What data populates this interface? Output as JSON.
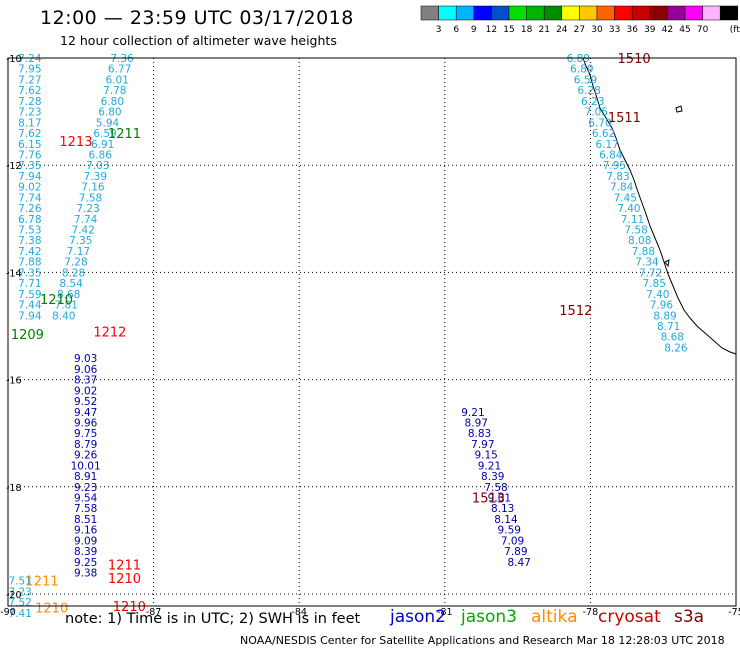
{
  "header": {
    "title": "12:00 — 23:59 UTC 03/17/2018",
    "subtitle": "12 hour collection of altimeter wave heights"
  },
  "colorbar": {
    "unit": "(ft)",
    "colors": [
      "#808080",
      "#00ffff",
      "#00b4ff",
      "#0000ff",
      "#0050c8",
      "#00e000",
      "#00b400",
      "#008c00",
      "#ffff00",
      "#ffc800",
      "#ff6400",
      "#ff0000",
      "#c80000",
      "#8c0000",
      "#960096",
      "#ff00ff",
      "#ffb4ff",
      "#000000"
    ],
    "labels": [
      "3",
      "6",
      "9",
      "12",
      "15",
      "18",
      "21",
      "24",
      "27",
      "30",
      "33",
      "36",
      "39",
      "42",
      "45",
      "70"
    ]
  },
  "axes": {
    "x_labels": [
      "-90",
      "-87",
      "-84",
      "-81",
      "-78",
      "-75"
    ],
    "y_labels": [
      "-10",
      "-12",
      "-14",
      "-16",
      "-18",
      "-20"
    ]
  },
  "passes": [
    {
      "label": "1510",
      "color": "#800000",
      "lon": -77.1,
      "lat": -10.0
    },
    {
      "label": "1511",
      "color": "#800000",
      "lon": -77.3,
      "lat": -11.1
    },
    {
      "label": "1512",
      "color": "#800000",
      "lon": -78.3,
      "lat": -14.7
    },
    {
      "label": "1513",
      "color": "#800000",
      "lon": -80.1,
      "lat": -18.2
    },
    {
      "label": "1211",
      "color": "#008000",
      "lon": -87.6,
      "lat": -11.4
    },
    {
      "label": "1213",
      "color": "#ff0000",
      "lon": -88.6,
      "lat": -11.55
    },
    {
      "label": "1210",
      "color": "#008000",
      "lon": -89.0,
      "lat": -14.5
    },
    {
      "label": "1212",
      "color": "#ff0000",
      "lon": -87.9,
      "lat": -15.1
    },
    {
      "label": "1209",
      "color": "#008000",
      "lon": -89.6,
      "lat": -15.15
    },
    {
      "label": "1211",
      "color": "#ff0000",
      "lon": -87.6,
      "lat": -19.45
    },
    {
      "label": "1210",
      "color": "#ff0000",
      "lon": -87.6,
      "lat": -19.7
    },
    {
      "label": "1211",
      "color": "#ff8c00",
      "lon": -89.3,
      "lat": -19.75
    },
    {
      "label": "1210",
      "color": "#ff8c00",
      "lon": -89.1,
      "lat": -20.25
    },
    {
      "label": "1210",
      "color": "#ff0000",
      "lon": -87.5,
      "lat": -20.22
    }
  ],
  "tracks": [
    {
      "name": "cryosat",
      "color": "#22aadd",
      "lon0": -78.25,
      "lat0": -10.0,
      "dlon": 0.0745,
      "dlat": 0.2,
      "values": [
        "6.89",
        "6.89",
        "6.59",
        "6.28",
        "6.23",
        "7.05",
        "6.70",
        "6.62",
        "6.17",
        "6.84",
        "7.95",
        "7.83",
        "7.84",
        "7.45",
        "7.40",
        "7.11",
        "7.58",
        "8.08",
        "7.88",
        "7.34",
        "7.72",
        "7.85",
        "7.40",
        "7.96",
        "8.89",
        "8.71",
        "8.68",
        "8.26"
      ]
    },
    {
      "name": "jason2-east",
      "color": "#0000aa",
      "lon0": -80.42,
      "lat0": -16.6,
      "dlon": 0.068,
      "dlat": 0.2,
      "values": [
        "9.21",
        "8.97",
        "8.83",
        "7.97",
        "9.15",
        "9.21",
        "8.39",
        "7.58",
        "9.01",
        "8.13",
        "8.14",
        "9.59",
        "7.09",
        "7.89",
        "8.47"
      ]
    },
    {
      "name": "jason2-west",
      "color": "#0000aa",
      "lon0": -88.4,
      "lat0": -15.6,
      "dlon": 0.0,
      "dlat": 0.2,
      "values": [
        "9.03",
        "9.06",
        "8.37",
        "9.02",
        "9.52",
        "9.47",
        "9.96",
        "9.75",
        "8.79",
        "9.26",
        "10.01",
        "8.91",
        "9.23",
        "9.54",
        "7.58",
        "8.51",
        "9.16",
        "9.09",
        "8.39",
        "9.25",
        "9.38"
      ]
    },
    {
      "name": "cryosat-west",
      "color": "#22aadd",
      "lon0": -87.65,
      "lat0": -10.0,
      "dlon": -0.05,
      "dlat": 0.2,
      "values": [
        "7.36",
        "6.77",
        "6.01",
        "7.78",
        "6.80",
        "6.80",
        "5.94",
        "6.59",
        "6.91",
        "6.86",
        "7.03",
        "7.39",
        "7.16",
        "7.58",
        "7.23",
        "7.74",
        "7.42",
        "7.35",
        "7.17",
        "7.28",
        "8.28",
        "8.54",
        "8.68",
        "7.81",
        "8.40"
      ]
    },
    {
      "name": "jason3-west",
      "color": "#22aadd",
      "lon0": -89.55,
      "lat0": -10.0,
      "dlon": 0.0,
      "dlat": 0.2,
      "values": [
        "7.24",
        "7.95",
        "7.27",
        "7.62",
        "7.28",
        "7.23",
        "8.17",
        "7.62",
        "6.15",
        "7.76",
        "7.35",
        "7.94",
        "9.02",
        "7.74",
        "7.26",
        "6.78",
        "7.53",
        "7.38",
        "7.42",
        "7.88",
        "7.35",
        "7.71",
        "7.59",
        "7.44",
        "7.94"
      ]
    },
    {
      "name": "altika-west",
      "color": "#22aadd",
      "lon0": -89.75,
      "lat0": -19.75,
      "dlon": 0.0,
      "dlat": 0.2,
      "values": [
        "7.51",
        "7.23",
        "7.52",
        "7.41"
      ]
    }
  ],
  "footer": {
    "note": "note:  1) Time is in UTC;  2) SWH is in feet",
    "legend": [
      {
        "name": "jason2",
        "color": "#0000cc"
      },
      {
        "name": "jason3",
        "color": "#00aa00"
      },
      {
        "name": "altika",
        "color": "#ff8c00"
      },
      {
        "name": "cryosat",
        "color": "#cc0000"
      },
      {
        "name": "s3a",
        "color": "#800000"
      }
    ],
    "credit": "NOAA/NESDIS Center for Satellite Applications and Research    Mar 18 12:28:03 UTC 2018"
  }
}
